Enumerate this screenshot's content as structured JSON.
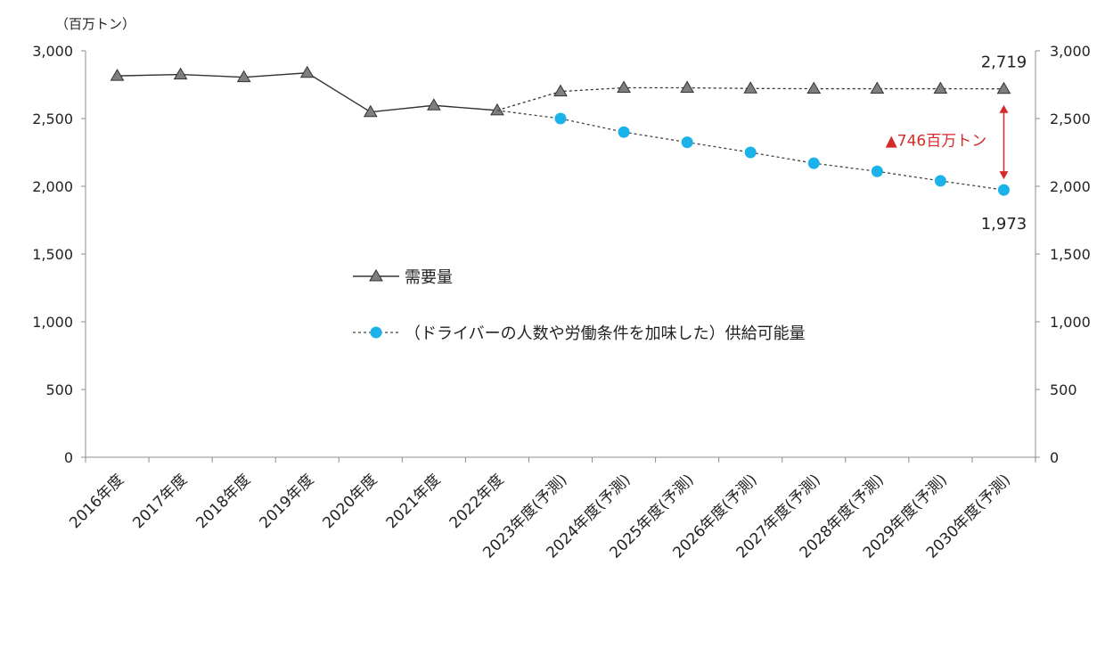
{
  "chart_data": {
    "type": "line",
    "unit_label": "（百万トン）",
    "categories": [
      "2016年度",
      "2017年度",
      "2018年度",
      "2019年度",
      "2020年度",
      "2021年度",
      "2022年度",
      "2023年度(予測)",
      "2024年度(予測)",
      "2025年度(予測)",
      "2026年度(予測)",
      "2027年度(予測)",
      "2028年度(予測)",
      "2029年度(予測)",
      "2030年度(予測)"
    ],
    "ylim": [
      0,
      3000
    ],
    "yticks": [
      0,
      500,
      1000,
      1500,
      2000,
      2500,
      3000
    ],
    "ytick_labels": [
      "0",
      "500",
      "1,000",
      "1,500",
      "2,000",
      "2,500",
      "3,000"
    ],
    "secondary_axis": true,
    "grid": false,
    "series": [
      {
        "name": "需要量",
        "marker": "triangle",
        "color": "#333333",
        "marker_color": "#7f7f7f",
        "values": [
          2815,
          2825,
          2805,
          2837,
          2548,
          2597,
          2560,
          2700,
          2727,
          2727,
          2722,
          2720,
          2720,
          2720,
          2719
        ]
      },
      {
        "name": "（ドライバーの人数や労働条件を加味した）供給可能量",
        "marker": "circle",
        "color": "#1ab2e8",
        "values": [
          null,
          null,
          null,
          null,
          null,
          null,
          2560,
          2500,
          2400,
          2325,
          2250,
          2170,
          2110,
          2040,
          1973
        ]
      }
    ],
    "legend_position": "center",
    "annotations": {
      "demand_end": "2,719",
      "supply_end": "1,973",
      "gap": "▲746百万トン"
    }
  }
}
